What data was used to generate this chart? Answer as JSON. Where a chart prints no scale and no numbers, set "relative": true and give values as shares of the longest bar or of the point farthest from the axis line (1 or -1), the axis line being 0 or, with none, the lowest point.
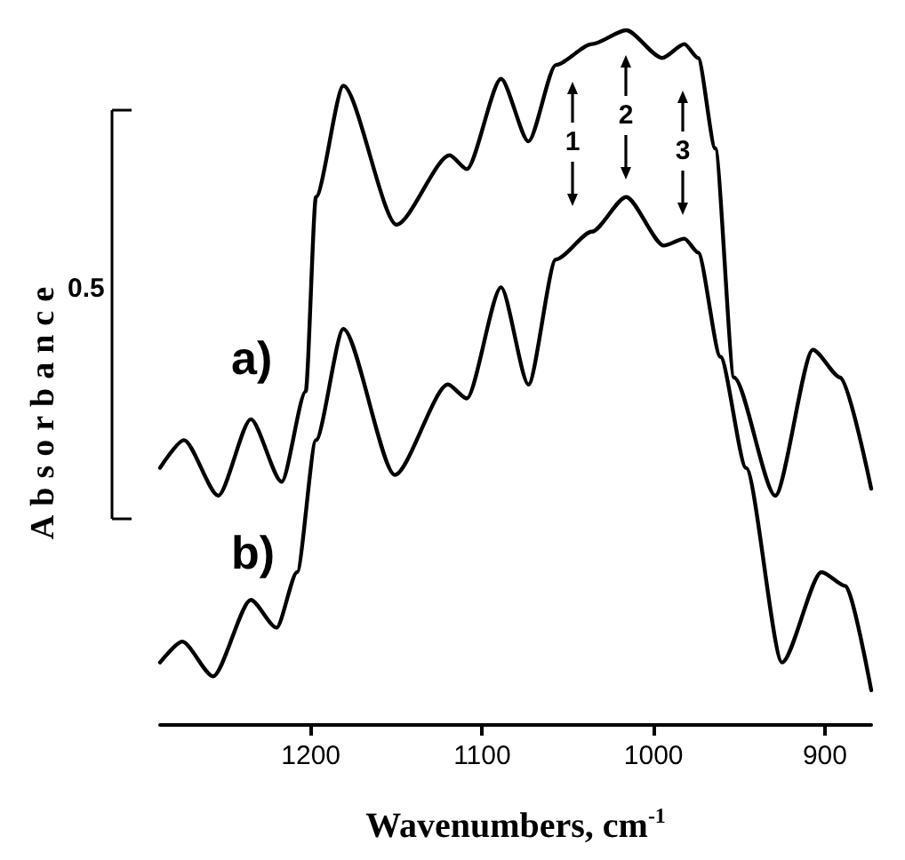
{
  "chart_data": {
    "type": "line",
    "relative": true,
    "xlabel": "Wavenumbers, cm$^{-1}$",
    "ylabel": "Absorbance",
    "xlim": [
      1288,
      873
    ],
    "xticks": [
      1200,
      1100,
      1000,
      900
    ],
    "grid": false,
    "legend": false,
    "marker": "none",
    "line_style": "solid",
    "annotations": [
      "0.5",
      "1",
      "2",
      "3"
    ],
    "series": [
      {
        "name": "a)",
        "color": "#000000",
        "x": [
          1288,
          1274,
          1254,
          1235,
          1217,
          1203,
          1197,
          1181,
          1150,
          1119,
          1109,
          1089,
          1073,
          1057,
          1036,
          1016,
          995,
          982,
          974,
          964,
          953,
          929,
          907,
          891,
          873
        ],
        "values": [
          0.37,
          0.41,
          0.33,
          0.44,
          0.35,
          0.48,
          0.76,
          0.92,
          0.72,
          0.82,
          0.8,
          0.93,
          0.84,
          0.95,
          0.98,
          1.0,
          0.96,
          0.98,
          0.96,
          0.83,
          0.5,
          0.33,
          0.54,
          0.5,
          0.34
        ]
      },
      {
        "name": "b)",
        "color": "#000000",
        "x": [
          1288,
          1275,
          1257,
          1235,
          1220,
          1208,
          1197,
          1181,
          1151,
          1120,
          1109,
          1089,
          1073,
          1057,
          1036,
          1016,
          994,
          982,
          974,
          961,
          946,
          925,
          902,
          888,
          873
        ],
        "values": [
          0.09,
          0.12,
          0.07,
          0.18,
          0.14,
          0.22,
          0.41,
          0.57,
          0.36,
          0.49,
          0.47,
          0.63,
          0.49,
          0.67,
          0.71,
          0.76,
          0.69,
          0.7,
          0.68,
          0.53,
          0.37,
          0.09,
          0.22,
          0.2,
          0.05
        ]
      }
    ]
  }
}
